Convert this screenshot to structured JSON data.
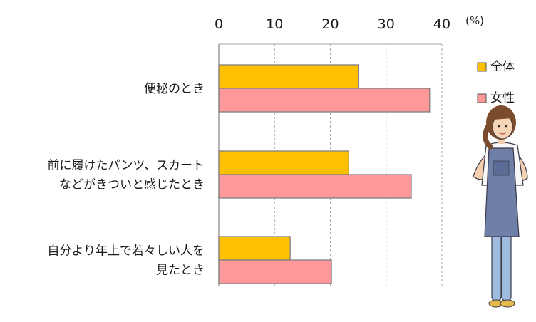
{
  "chart_data": {
    "type": "bar",
    "orientation": "horizontal",
    "unit_label": "(%)",
    "xlim": [
      0,
      40
    ],
    "ticks": [
      0,
      10,
      20,
      30,
      40
    ],
    "grid": true,
    "legend_position": "right",
    "categories": [
      [
        "便秘のとき"
      ],
      [
        "前に履けたパンツ、スカート",
        "などがきついと感じたとき"
      ],
      [
        "自分より年上で若々しい人を",
        "見たとき"
      ]
    ],
    "series": [
      {
        "name": "全体",
        "color": "#FFC000",
        "values": [
          25,
          23.3,
          12.8
        ]
      },
      {
        "name": "女性",
        "color": "#FF9999",
        "values": [
          37.8,
          34.5,
          20.2
        ]
      }
    ]
  }
}
